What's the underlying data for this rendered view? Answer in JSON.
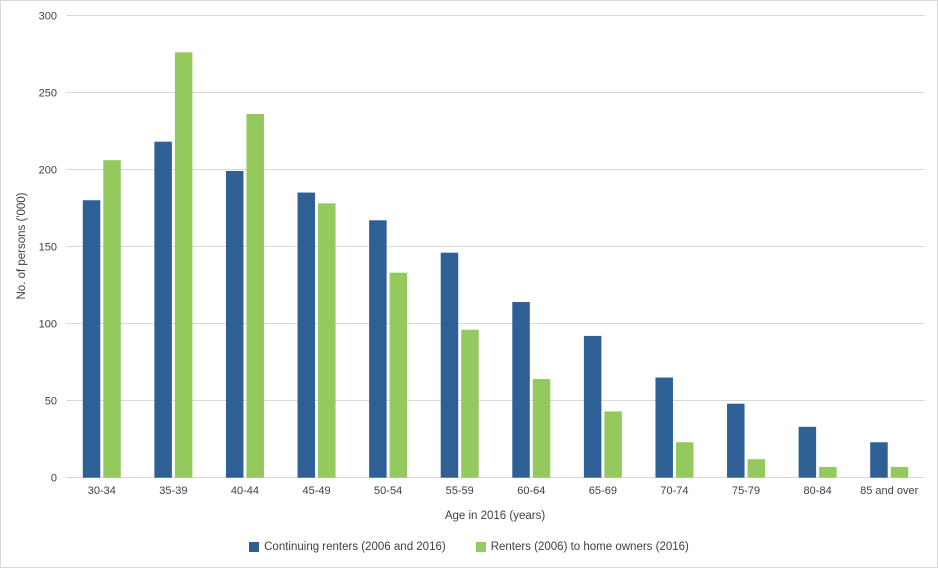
{
  "chart_data": {
    "type": "bar",
    "title": "",
    "xlabel": "Age in 2016 (years)",
    "ylabel": "No. of persons ('000)",
    "categories": [
      "30-34",
      "35-39",
      "40-44",
      "45-49",
      "50-54",
      "55-59",
      "60-64",
      "65-69",
      "70-74",
      "75-79",
      "80-84",
      "85 and over"
    ],
    "series": [
      {
        "name": "Continuing renters (2006 and 2016)",
        "color": "#2f6095",
        "values": [
          180,
          218,
          199,
          185,
          167,
          146,
          114,
          92,
          65,
          48,
          33,
          23
        ]
      },
      {
        "name": "Renters (2006) to home owners (2016)",
        "color": "#93c95d",
        "values": [
          206,
          276,
          236,
          178,
          133,
          96,
          64,
          43,
          23,
          12,
          7,
          7
        ]
      }
    ],
    "ylim": [
      0,
      300
    ],
    "yticks": [
      0,
      50,
      100,
      150,
      200,
      250,
      300
    ],
    "grid": true,
    "legend_position": "bottom",
    "gridline_color": "#d9d9d9",
    "text_color": "#3f3f3f"
  }
}
